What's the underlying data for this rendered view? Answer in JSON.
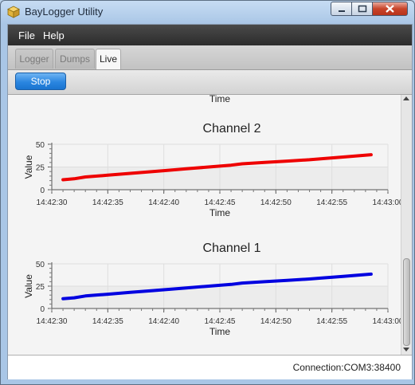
{
  "window": {
    "title": "BayLogger Utility"
  },
  "menu": {
    "items": [
      "File",
      "Help"
    ]
  },
  "tabs": [
    {
      "label": "Logger",
      "active": false
    },
    {
      "label": "Dumps",
      "active": false
    },
    {
      "label": "Live",
      "active": true
    }
  ],
  "toolbar": {
    "stop_label": "Stop"
  },
  "top_partial_axis_label": "Time",
  "status": {
    "connection": "Connection:COM3:38400"
  },
  "colors": {
    "channel2": "#ee0000",
    "channel1": "#0000e0",
    "accent": "#2a86e0"
  },
  "chart_data": [
    {
      "type": "line",
      "title": "Channel 2",
      "xlabel": "Time",
      "ylabel": "Value",
      "xlim": [
        "14:42:30",
        "14:43:00"
      ],
      "ylim": [
        0,
        50
      ],
      "x_ticks": [
        "14:42:30",
        "14:42:35",
        "14:42:40",
        "14:42:45",
        "14:42:50",
        "14:42:55",
        "14:43:00"
      ],
      "y_ticks": [
        0,
        25,
        50
      ],
      "grid": true,
      "series": [
        {
          "x": [
            "14:42:31",
            "14:42:32",
            "14:42:33",
            "14:42:35",
            "14:42:37",
            "14:42:39",
            "14:42:40",
            "14:42:42",
            "14:42:44",
            "14:42:46",
            "14:42:47",
            "14:42:49",
            "14:42:51",
            "14:42:53",
            "14:42:54",
            "14:42:56",
            "14:42:58.5"
          ],
          "y": [
            11,
            12,
            14,
            16,
            18,
            20,
            21,
            23,
            25,
            27,
            28.5,
            30,
            31.5,
            33,
            34,
            36,
            38.5
          ],
          "color": "#ee0000"
        }
      ]
    },
    {
      "type": "line",
      "title": "Channel 1",
      "xlabel": "Time",
      "ylabel": "Value",
      "xlim": [
        "14:42:30",
        "14:43:00"
      ],
      "ylim": [
        0,
        50
      ],
      "x_ticks": [
        "14:42:30",
        "14:42:35",
        "14:42:40",
        "14:42:45",
        "14:42:50",
        "14:42:55",
        "14:43:00"
      ],
      "y_ticks": [
        0,
        25,
        50
      ],
      "grid": true,
      "series": [
        {
          "x": [
            "14:42:31",
            "14:42:32",
            "14:42:33",
            "14:42:35",
            "14:42:37",
            "14:42:39",
            "14:42:40",
            "14:42:42",
            "14:42:44",
            "14:42:46",
            "14:42:47",
            "14:42:49",
            "14:42:51",
            "14:42:53",
            "14:42:54",
            "14:42:56",
            "14:42:58.5"
          ],
          "y": [
            11,
            12,
            14,
            16,
            18,
            20,
            21,
            23,
            25,
            27,
            28.5,
            30,
            31.5,
            33,
            34,
            36,
            38.5
          ],
          "color": "#0000e0"
        }
      ]
    }
  ]
}
